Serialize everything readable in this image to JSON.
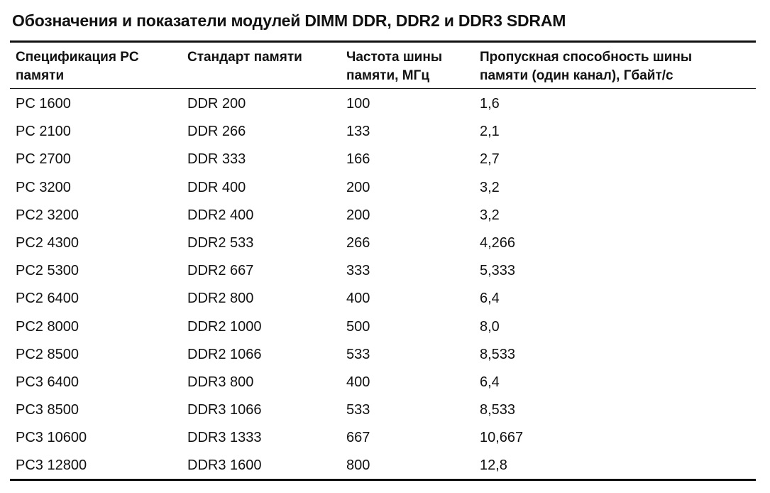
{
  "title": "Обозначения и показатели модулей DIMM DDR, DDR2 и DDR3 SDRAM",
  "table": {
    "headers": [
      "Спецификация PC\nпамяти",
      "Стандарт памяти",
      "Частота шины\nпамяти, МГц",
      "Пропускная способность шины\nпамяти (один канал), Гбайт/с"
    ],
    "rows": [
      [
        "PC 1600",
        "DDR 200",
        "100",
        "1,6"
      ],
      [
        "PC 2100",
        "DDR 266",
        "133",
        "2,1"
      ],
      [
        "PC 2700",
        "DDR 333",
        "166",
        "2,7"
      ],
      [
        "PC 3200",
        "DDR 400",
        "200",
        "3,2"
      ],
      [
        "PC2 3200",
        "DDR2 400",
        "200",
        "3,2"
      ],
      [
        "PC2 4300",
        "DDR2 533",
        "266",
        "4,266"
      ],
      [
        "PC2 5300",
        "DDR2 667",
        "333",
        "5,333"
      ],
      [
        "PC2 6400",
        "DDR2 800",
        "400",
        "6,4"
      ],
      [
        "PC2 8000",
        "DDR2 1000",
        "500",
        "8,0"
      ],
      [
        "PC2 8500",
        "DDR2 1066",
        "533",
        "8,533"
      ],
      [
        "PC3 6400",
        "DDR3 800",
        "400",
        "6,4"
      ],
      [
        "PC3 8500",
        "DDR3 1066",
        "533",
        "8,533"
      ],
      [
        "PC3 10600",
        "DDR3 1333",
        "667",
        "10,667"
      ],
      [
        "PC3 12800",
        "DDR3 1600",
        "800",
        "12,8"
      ]
    ]
  }
}
